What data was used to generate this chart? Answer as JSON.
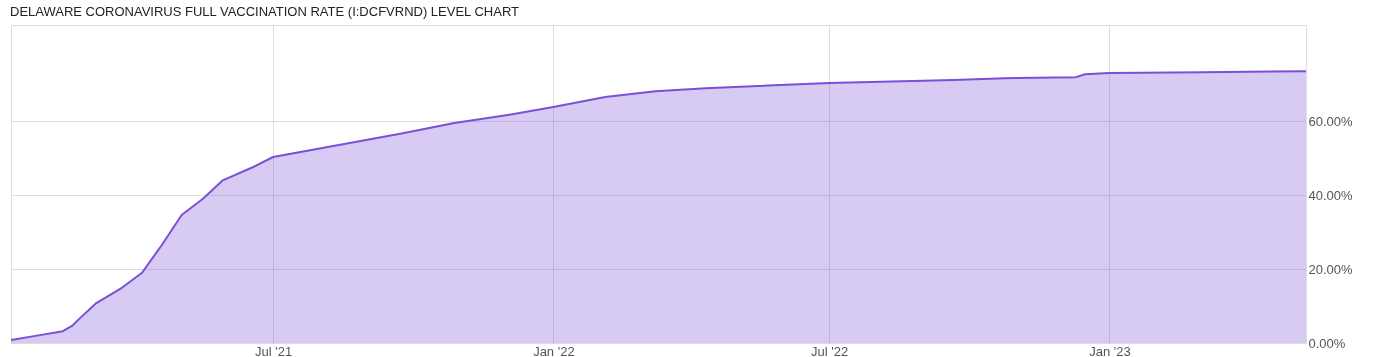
{
  "chart_data": {
    "type": "area",
    "title": "DELAWARE CORONAVIRUS FULL VACCINATION RATE (I:DCFVRND) LEVEL CHART",
    "x": [
      "2021-01-10",
      "2021-01-30",
      "2021-02-13",
      "2021-02-19",
      "2021-02-25",
      "2021-03-07",
      "2021-03-24",
      "2021-04-06",
      "2021-04-19",
      "2021-05-02",
      "2021-05-16",
      "2021-05-29",
      "2021-06-18",
      "2021-07-01",
      "2021-08-23",
      "2021-09-25",
      "2021-10-28",
      "2021-12-01",
      "2022-01-01",
      "2022-02-04",
      "2022-03-09",
      "2022-04-11",
      "2022-07-01",
      "2022-09-21",
      "2022-10-24",
      "2022-12-10",
      "2022-12-16",
      "2023-01-01",
      "2023-03-03",
      "2023-05-10"
    ],
    "series": [
      {
        "color": "#7b4fd8",
        "values": [
          0.8,
          2.2,
          3.2,
          4.6,
          7,
          10.8,
          15,
          19,
          26.5,
          34.6,
          39,
          44,
          47.6,
          50.3,
          54.3,
          56.8,
          59.5,
          61.6,
          63.8,
          66.5,
          68.1,
          68.9,
          70.3,
          71.1,
          71.6,
          71.9,
          72.7,
          73,
          73.2,
          73.5
        ]
      }
    ],
    "xlim": [
      "2021-01-10",
      "2023-05-10"
    ],
    "xticks": [
      {
        "value": "2021-07-01",
        "label": "Jul '21"
      },
      {
        "value": "2022-01-01",
        "label": "Jan '22"
      },
      {
        "value": "2022-07-01",
        "label": "Jul '22"
      },
      {
        "value": "2023-01-01",
        "label": "Jan '23"
      }
    ],
    "ylim": [
      0,
      86
    ],
    "yticks": [
      {
        "value": 0,
        "label": "0.00%"
      },
      {
        "value": 20,
        "label": "20.00%"
      },
      {
        "value": 40,
        "label": "40.00%"
      },
      {
        "value": 60,
        "label": "60.00%"
      }
    ],
    "grid": true
  }
}
